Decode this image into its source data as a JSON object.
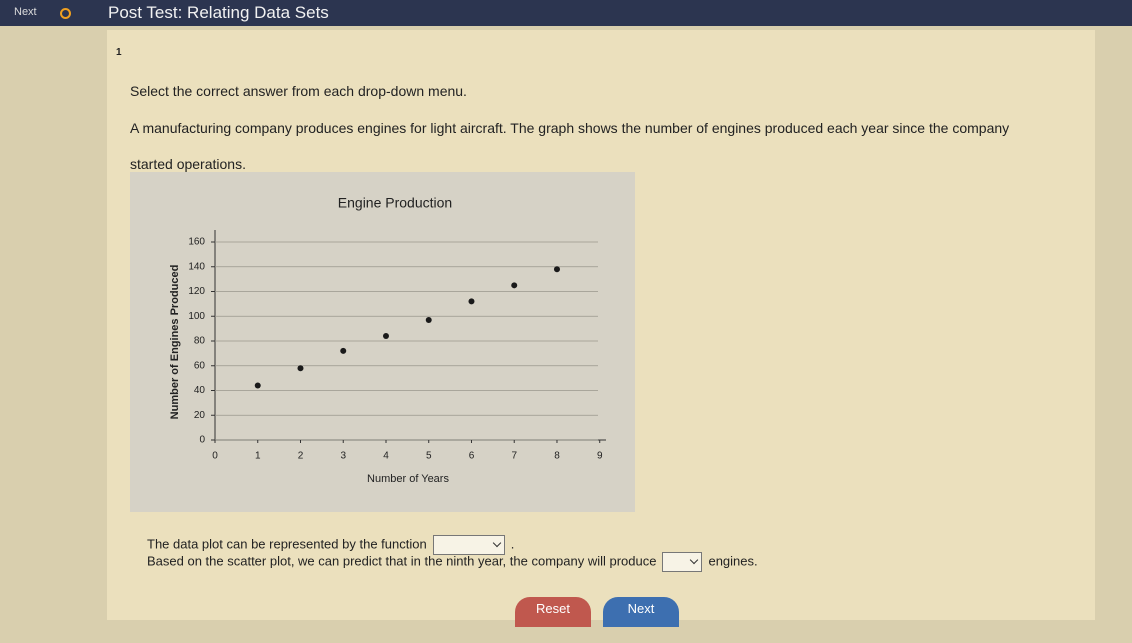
{
  "header": {
    "nav": "Next",
    "title": "Post Test: Relating Data Sets"
  },
  "question": {
    "number": "1",
    "instruction": "Select the correct answer from each drop-down menu.",
    "prompt": "A manufacturing company produces engines for light aircraft. The graph shows the number of engines produced each year since the company started operations."
  },
  "chart_data": {
    "type": "scatter",
    "title": "Engine Production",
    "x_label": "Number of Years",
    "y_label": "Number of Engines Produced",
    "x": [
      1,
      2,
      3,
      4,
      5,
      6,
      7,
      8
    ],
    "values": [
      44,
      58,
      72,
      84,
      97,
      112,
      125,
      138
    ],
    "color": "#1a1a1a",
    "xlim": [
      0,
      9.1
    ],
    "xticks": [
      0,
      1,
      2,
      3,
      4,
      5,
      6,
      7,
      8,
      9
    ],
    "ylim": [
      0,
      160
    ],
    "yticks": [
      0,
      20,
      40,
      60,
      80,
      100,
      120,
      140,
      160
    ],
    "grid": true
  },
  "answers": [
    {
      "before": "The data plot can be represented by the function",
      "after": "."
    },
    {
      "before": "Based on the scatter plot, we can predict that in the ninth year, the company will produce",
      "after": "engines."
    }
  ],
  "buttons": [
    "Reset",
    "Next"
  ]
}
